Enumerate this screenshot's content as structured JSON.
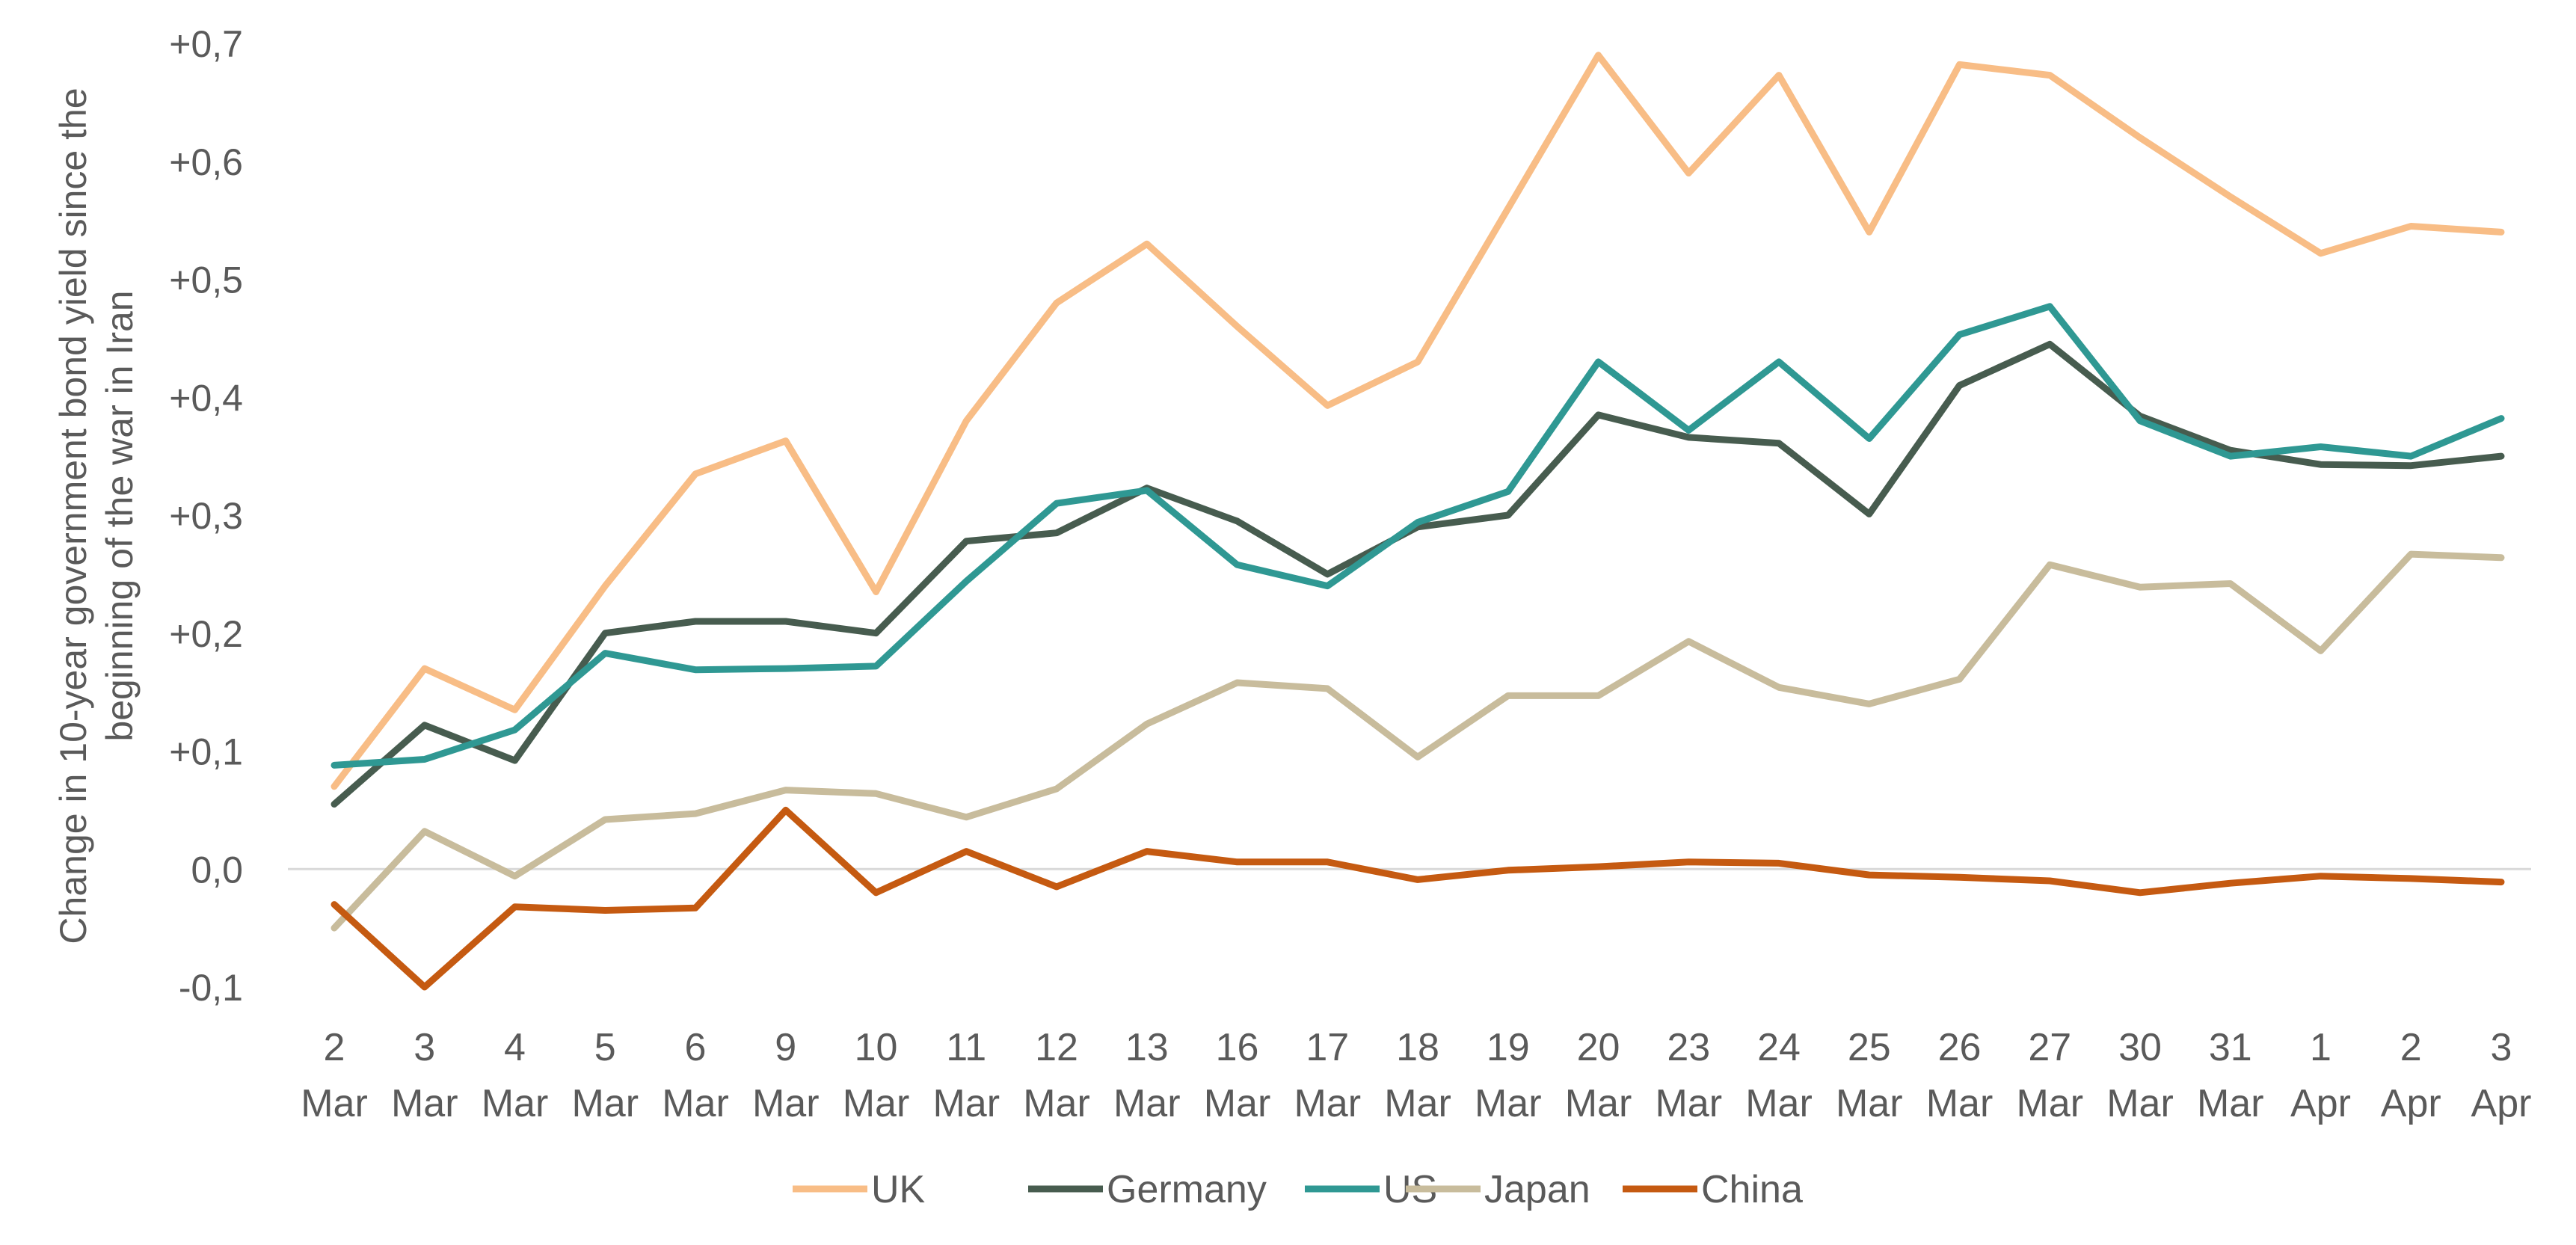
{
  "chart_data": {
    "type": "line",
    "title": "",
    "xlabel": "",
    "ylabel_lines": [
      "Change in 10-year government bond yield since the",
      "beginning of the war in Iran"
    ],
    "categories": [
      [
        "2",
        "Mar"
      ],
      [
        "3",
        "Mar"
      ],
      [
        "4",
        "Mar"
      ],
      [
        "5",
        "Mar"
      ],
      [
        "6",
        "Mar"
      ],
      [
        "9",
        "Mar"
      ],
      [
        "10",
        "Mar"
      ],
      [
        "11",
        "Mar"
      ],
      [
        "12",
        "Mar"
      ],
      [
        "13",
        "Mar"
      ],
      [
        "16",
        "Mar"
      ],
      [
        "17",
        "Mar"
      ],
      [
        "18",
        "Mar"
      ],
      [
        "19",
        "Mar"
      ],
      [
        "20",
        "Mar"
      ],
      [
        "23",
        "Mar"
      ],
      [
        "24",
        "Mar"
      ],
      [
        "25",
        "Mar"
      ],
      [
        "26",
        "Mar"
      ],
      [
        "27",
        "Mar"
      ],
      [
        "30",
        "Mar"
      ],
      [
        "31",
        "Mar"
      ],
      [
        "1",
        "Apr"
      ],
      [
        "2",
        "Apr"
      ],
      [
        "3",
        "Apr"
      ]
    ],
    "ylim": [
      -0.1,
      0.7
    ],
    "yticks": [
      {
        "value": 0.7,
        "label": "+0,7"
      },
      {
        "value": 0.6,
        "label": "+0,6"
      },
      {
        "value": 0.5,
        "label": "+0,5"
      },
      {
        "value": 0.4,
        "label": "+0,4"
      },
      {
        "value": 0.3,
        "label": "+0,3"
      },
      {
        "value": 0.2,
        "label": "+0,2"
      },
      {
        "value": 0.1,
        "label": "+0,1"
      },
      {
        "value": 0.0,
        "label": "0,0"
      },
      {
        "value": -0.1,
        "label": "-0,1"
      }
    ],
    "zero_line": true,
    "grid": false,
    "legend_position": "bottom",
    "series": [
      {
        "name": "UK",
        "color": "#f8bd86",
        "values": [
          0.07,
          0.17,
          0.135,
          0.24,
          0.335,
          0.363,
          0.235,
          0.38,
          0.48,
          0.53,
          0.46,
          0.393,
          0.43,
          0.56,
          0.69,
          0.59,
          0.673,
          0.54,
          0.682,
          0.673,
          0.62,
          0.57,
          0.522,
          0.545,
          0.54
        ]
      },
      {
        "name": "Germany",
        "color": "#475c4f",
        "values": [
          0.055,
          0.122,
          0.092,
          0.2,
          0.21,
          0.21,
          0.2,
          0.278,
          0.285,
          0.323,
          0.295,
          0.25,
          0.29,
          0.3,
          0.385,
          0.366,
          0.361,
          0.301,
          0.41,
          0.445,
          0.384,
          0.355,
          0.343,
          0.342,
          0.35
        ]
      },
      {
        "name": "US",
        "color": "#2f9893",
        "values": [
          0.088,
          0.093,
          0.118,
          0.183,
          0.169,
          0.17,
          0.172,
          0.244,
          0.31,
          0.321,
          0.258,
          0.24,
          0.294,
          0.32,
          0.43,
          0.372,
          0.43,
          0.365,
          0.453,
          0.477,
          0.38,
          0.35,
          0.358,
          0.35,
          0.382
        ]
      },
      {
        "name": "Japan",
        "color": "#c8bc9c",
        "values": [
          -0.05,
          0.032,
          -0.006,
          0.042,
          0.047,
          0.067,
          0.064,
          0.044,
          0.068,
          0.123,
          0.158,
          0.153,
          0.095,
          0.147,
          0.147,
          0.193,
          0.154,
          0.14,
          0.161,
          0.258,
          0.239,
          0.242,
          0.185,
          0.267,
          0.264
        ]
      },
      {
        "name": "China",
        "color": "#c55a11",
        "values": [
          -0.03,
          -0.1,
          -0.032,
          -0.035,
          -0.033,
          0.05,
          -0.02,
          0.015,
          -0.015,
          0.015,
          0.006,
          0.006,
          -0.009,
          -0.001,
          0.002,
          0.006,
          0.005,
          -0.005,
          -0.007,
          -0.01,
          -0.02,
          -0.012,
          -0.006,
          -0.008,
          -0.011
        ]
      }
    ]
  }
}
